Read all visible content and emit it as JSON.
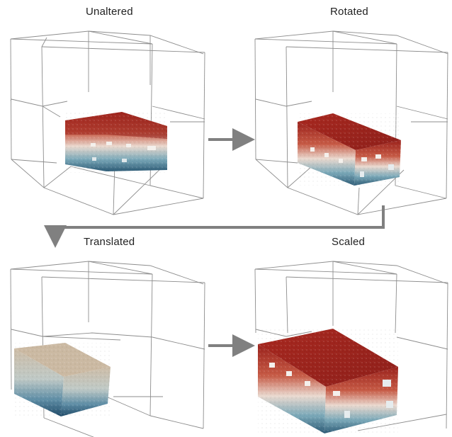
{
  "panels": [
    {
      "id": "unaltered",
      "title": "Unaltered"
    },
    {
      "id": "rotated",
      "title": "Rotated"
    },
    {
      "id": "translated",
      "title": "Translated"
    },
    {
      "id": "scaled",
      "title": "Scaled"
    }
  ],
  "colors": {
    "grid_lines": "#8d8d8d",
    "arrow": "#808080",
    "cloud_top": "#a3261f",
    "cloud_mid": "#e8d8cf",
    "cloud_bottom": "#2c5a75",
    "translated_top": "#c9b7a0"
  }
}
